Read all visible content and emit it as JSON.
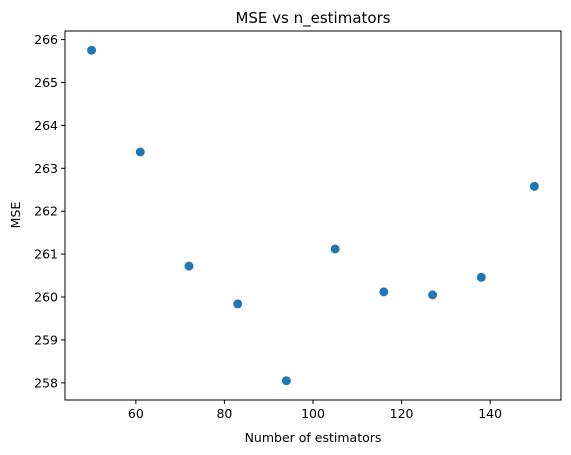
{
  "chart_data": {
    "type": "scatter",
    "title": "MSE vs n_estimators",
    "xlabel": "Number of estimators",
    "ylabel": "MSE",
    "xlim": [
      44,
      156
    ],
    "ylim": [
      257.6,
      266.2
    ],
    "xticks": [
      60,
      80,
      100,
      120,
      140
    ],
    "yticks": [
      258,
      259,
      260,
      261,
      262,
      263,
      264,
      265,
      266
    ],
    "grid": false,
    "point_color": "#1f77b4",
    "points": [
      {
        "x": 50,
        "y": 265.75
      },
      {
        "x": 61,
        "y": 263.38
      },
      {
        "x": 72,
        "y": 260.72
      },
      {
        "x": 83,
        "y": 259.84
      },
      {
        "x": 94,
        "y": 258.05
      },
      {
        "x": 105,
        "y": 261.12
      },
      {
        "x": 116,
        "y": 260.12
      },
      {
        "x": 127,
        "y": 260.05
      },
      {
        "x": 138,
        "y": 260.46
      },
      {
        "x": 150,
        "y": 262.58
      }
    ]
  }
}
